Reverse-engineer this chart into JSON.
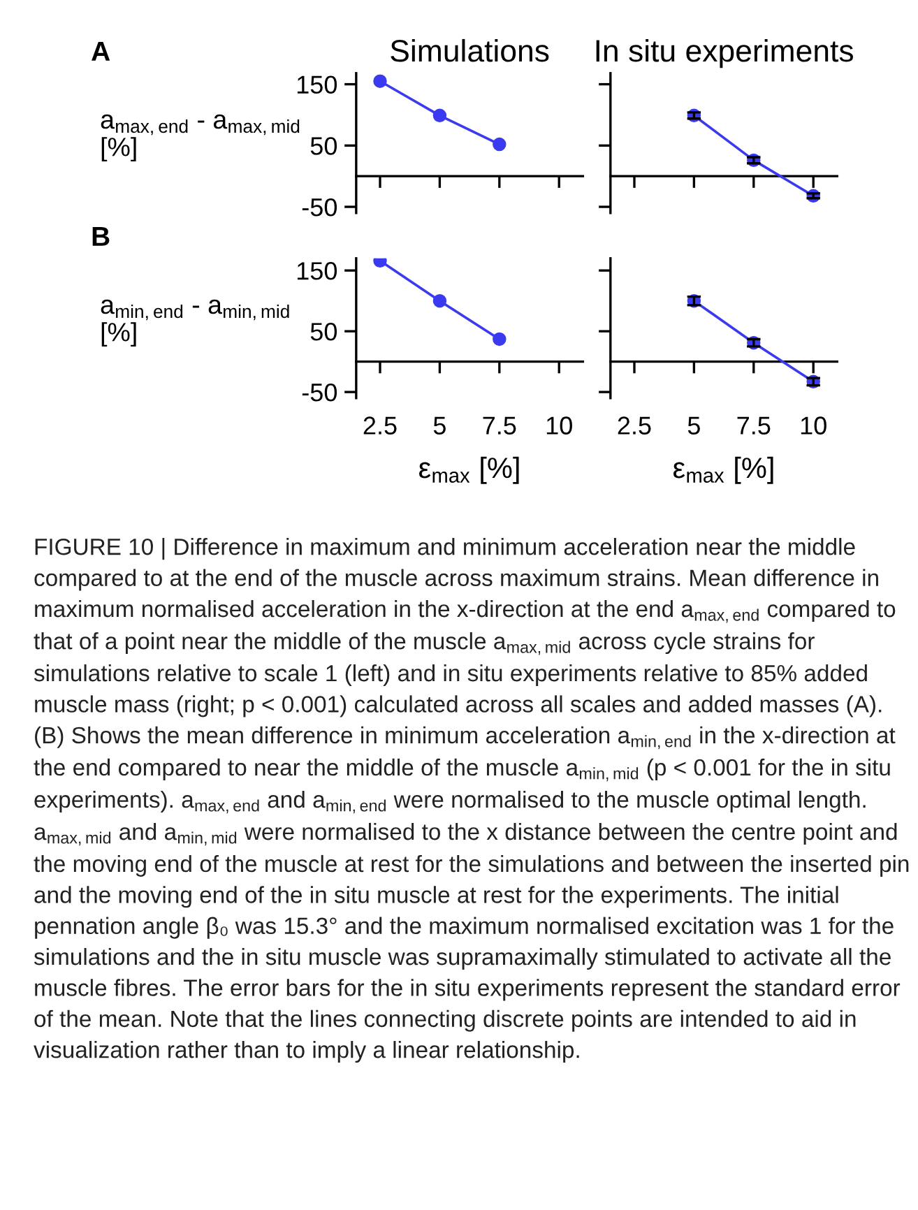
{
  "chart_data": [
    {
      "type": "line",
      "title": "Simulations",
      "ylabel": "a$_{max,end}$ - a$_{max,mid}$ [%]",
      "annotations": [
        "A"
      ],
      "x": [
        2.5,
        5,
        7.5
      ],
      "series": [
        {
          "color": "#3a3af0",
          "values": [
            155,
            99,
            52
          ]
        }
      ],
      "xlim": [
        1.5,
        11
      ],
      "xticks": [
        2.5,
        5,
        7.5,
        10
      ],
      "ylim": [
        -60,
        168
      ],
      "yticks": [
        -50,
        50,
        150
      ],
      "marker": "circle",
      "line_style": "solid",
      "grid": false,
      "tick_labels": "y"
    },
    {
      "type": "line",
      "title": "In situ experiments",
      "x": [
        5,
        7.5,
        10
      ],
      "series": [
        {
          "color": "#3a3af0",
          "values": [
            99,
            26,
            -32
          ],
          "errors": [
            5,
            5,
            4
          ]
        }
      ],
      "xlim": [
        1.5,
        11
      ],
      "xticks": [
        2.5,
        5,
        7.5,
        10
      ],
      "ylim": [
        -60,
        168
      ],
      "yticks": [
        -50,
        50,
        150
      ],
      "marker": "circle",
      "line_style": "solid",
      "grid": false,
      "tick_labels": false
    },
    {
      "type": "line",
      "xlabel": "ε$_{max}$ [%]",
      "ylabel": "a$_{min,end}$ - a$_{min,mid}$ [%]",
      "annotations": [
        "B"
      ],
      "x": [
        2.5,
        5,
        7.5
      ],
      "series": [
        {
          "color": "#3a3af0",
          "values": [
            166,
            100,
            37
          ]
        }
      ],
      "xlim": [
        1.5,
        11
      ],
      "xticks": [
        2.5,
        5,
        7.5,
        10
      ],
      "ylim": [
        -60,
        170
      ],
      "yticks": [
        -50,
        50,
        150
      ],
      "marker": "circle",
      "line_style": "solid",
      "grid": false
    },
    {
      "type": "line",
      "xlabel": "ε$_{max}$ [%]",
      "annotations": [
        "FIGURE 10 | Difference in maximum and minimum acceleration near the middle compared to at the end of the muscle across maximum strains. Mean difference in maximum normalised acceleration in the x-direction at the end a$_{max,end}$ compared to that of a point near the middle of the muscle a$_{max,mid}$ across cycle strains for simulations relative to scale 1 (left) and in situ experiments relative to 85% added muscle mass (right; p < 0.001) calculated across all scales and added masses (A). (B) Shows the mean difference in minimum acceleration a$_{min,end}$ in the x-direction at the end compared to near the middle of the muscle a$_{min,mid}$ (p < 0.001 for the in situ experiments). a$_{max,end}$ and a$_{min,end}$ were normalised to the muscle optimal length. a$_{max,mid}$ and a$_{min,mid}$ were normalised to the x distance between the centre point and the moving end of the muscle at rest for the simulations and between the inserted pin and the moving end of the in situ muscle at rest for the experiments. The initial pennation angle β₀ was 15.3° and the maximum normalised excitation was 1 for the simulations and the in situ muscle was supramaximally stimulated to activate all the muscle fibres. The error bars for the in situ experiments represent the standard error of the mean. Note that the lines connecting discrete points are intended to aid in visualization rather than to imply a linear relationship."
      ],
      "x": [
        5,
        7.5,
        10
      ],
      "series": [
        {
          "color": "#3a3af0",
          "values": [
            100,
            31,
            -33
          ],
          "errors": [
            7,
            6,
            6
          ]
        }
      ],
      "xlim": [
        1.5,
        11
      ],
      "xticks": [
        2.5,
        5,
        7.5,
        10
      ],
      "ylim": [
        -60,
        170
      ],
      "yticks": [
        -50,
        50,
        150
      ],
      "marker": "circle",
      "line_style": "solid",
      "grid": false,
      "tick_labels": "x"
    }
  ]
}
